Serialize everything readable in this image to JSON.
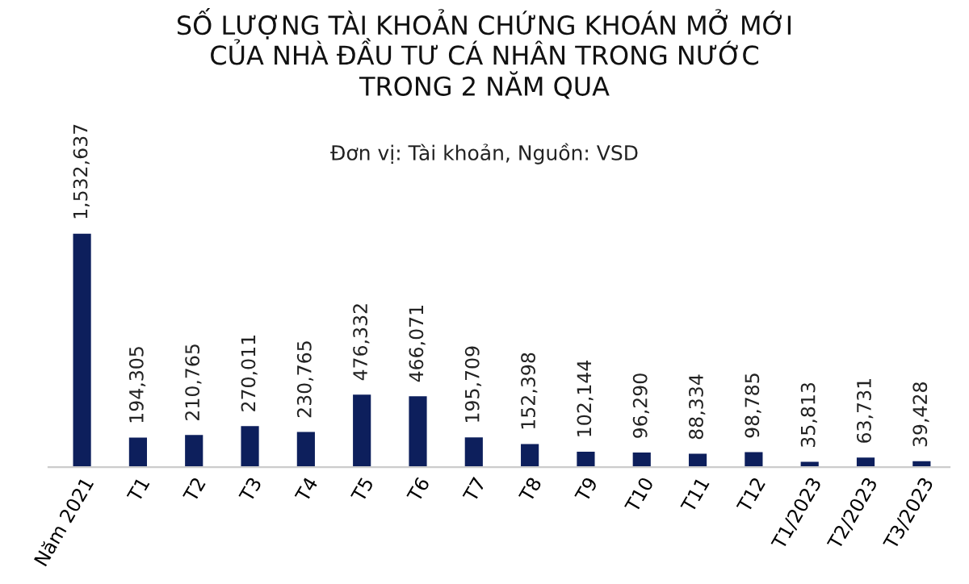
{
  "chart_data": {
    "type": "bar",
    "title": "SỐ LƯỢNG TÀI KHOẢN CHỨNG KHOÁN MỞ MỚI\nCỦA NHÀ ĐẦU TƯ CÁ NHÂN TRONG NƯỚC\nTRONG 2 NĂM QUA",
    "subtitle": "Đơn vị: Tài khoản, Nguồn: VSD",
    "categories": [
      "Năm 2021",
      "T1",
      "T2",
      "T3",
      "T4",
      "T5",
      "T6",
      "T7",
      "T8",
      "T9",
      "T10",
      "T11",
      "T12",
      "T1/2023",
      "T2/2023",
      "T3/2023"
    ],
    "values": [
      1532637,
      194305,
      210765,
      270011,
      230765,
      476332,
      466071,
      195709,
      152398,
      102144,
      96290,
      88334,
      98785,
      35813,
      63731,
      39428
    ],
    "color": "#0d1f5c",
    "value_labels": [
      "1,532,637",
      "194,305",
      "210,765",
      "270,011",
      "230,765",
      "476,332",
      "466,071",
      "195,709",
      "152,398",
      "102,144",
      "96,290",
      "88,334",
      "98,785",
      "35,813",
      "63,731",
      "39,428"
    ],
    "grid": false,
    "legend": false
  }
}
